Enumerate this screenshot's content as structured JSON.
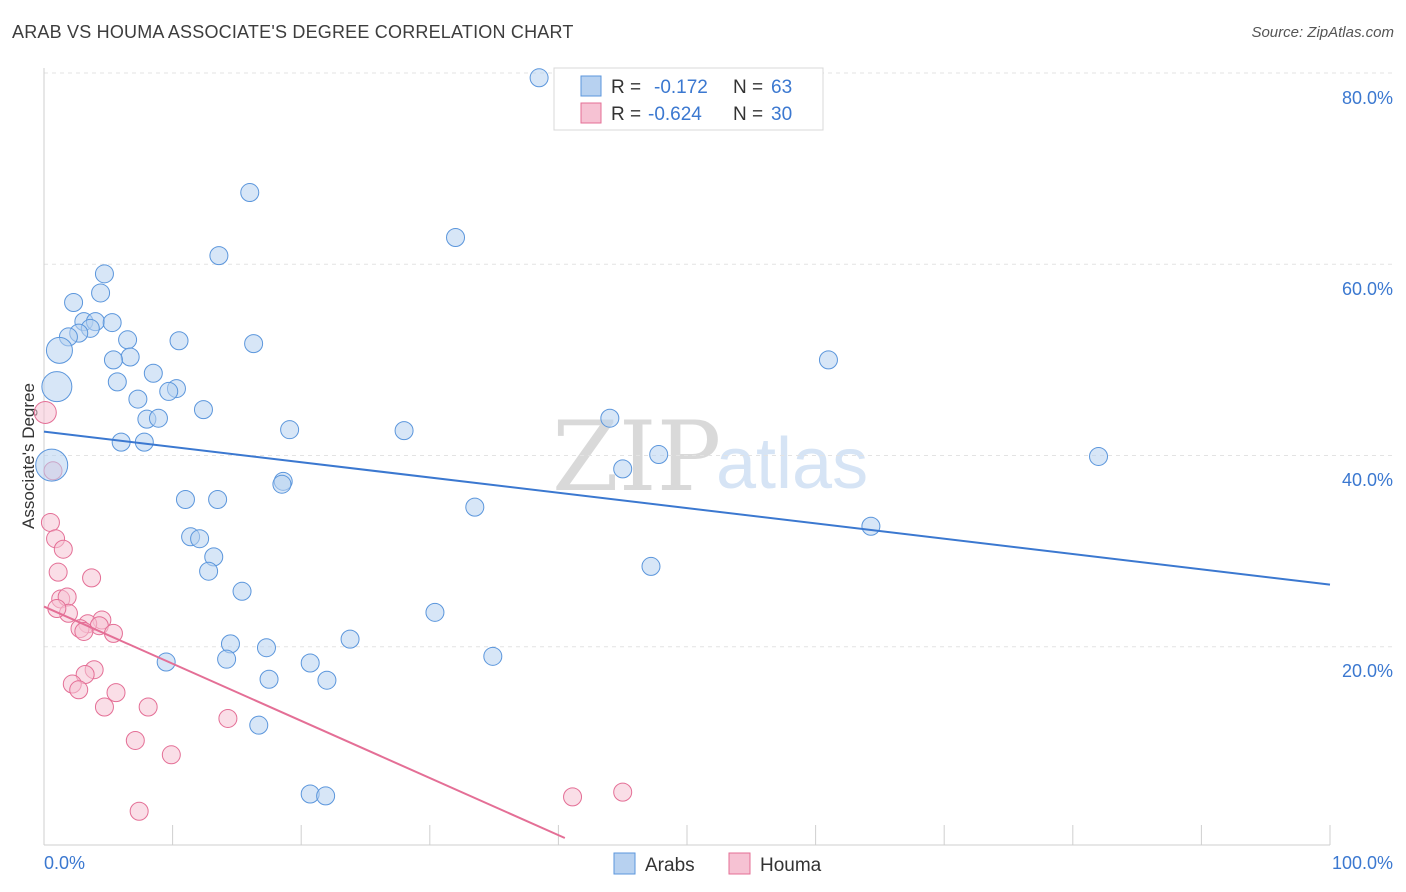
{
  "header": {
    "title": "ARAB VS HOUMA ASSOCIATE'S DEGREE CORRELATION CHART",
    "source": "Source: ZipAtlas.com"
  },
  "colors": {
    "arabs": "#5b96dc",
    "arabs_fill": "#b7d1f0",
    "houma": "#e46f96",
    "houma_fill": "#f6c2d3",
    "tick": "#3b78d0",
    "grid": "#e3e3e3"
  },
  "legend": {
    "arabs": {
      "r_label": "R =",
      "r_value": "-0.172",
      "n_label": "N =",
      "n_value": "63"
    },
    "houma": {
      "r_label": "R =",
      "r_value": "-0.624",
      "n_label": "N =",
      "n_value": "30"
    }
  },
  "watermark": {
    "zip": "ZIP",
    "atlas": "atlas"
  },
  "chart_data": {
    "type": "scatter",
    "title": "ARAB VS HOUMA ASSOCIATE'S DEGREE CORRELATION CHART",
    "xlabel": "",
    "ylabel": "Associate's Degree",
    "xlim": [
      0,
      100
    ],
    "ylim": [
      0,
      80
    ],
    "x_tick_labels": [
      "0.0%",
      "100.0%"
    ],
    "y_ticks": [
      20,
      40,
      60,
      80
    ],
    "y_tick_labels": [
      "20.0%",
      "40.0%",
      "60.0%",
      "80.0%"
    ],
    "legend_position": "bottom",
    "series": [
      {
        "name": "Arabs",
        "trend": {
          "x": [
            0,
            100
          ],
          "y": [
            42.5,
            26.5
          ]
        },
        "points": [
          {
            "x": 38.5,
            "y": 79.5,
            "size": 9
          },
          {
            "x": 16.0,
            "y": 67.5,
            "size": 9
          },
          {
            "x": 32.0,
            "y": 62.8,
            "size": 9
          },
          {
            "x": 13.6,
            "y": 60.9,
            "size": 9
          },
          {
            "x": 4.7,
            "y": 59.0,
            "size": 9
          },
          {
            "x": 4.4,
            "y": 57.0,
            "size": 9
          },
          {
            "x": 2.3,
            "y": 56.0,
            "size": 9
          },
          {
            "x": 3.1,
            "y": 54.0,
            "size": 9
          },
          {
            "x": 4.0,
            "y": 54.0,
            "size": 9
          },
          {
            "x": 3.6,
            "y": 53.3,
            "size": 9
          },
          {
            "x": 2.7,
            "y": 52.8,
            "size": 9
          },
          {
            "x": 1.9,
            "y": 52.4,
            "size": 9
          },
          {
            "x": 6.5,
            "y": 52.1,
            "size": 9
          },
          {
            "x": 10.5,
            "y": 52.0,
            "size": 9
          },
          {
            "x": 16.3,
            "y": 51.7,
            "size": 9
          },
          {
            "x": 1.2,
            "y": 51.0,
            "size": 13
          },
          {
            "x": 6.7,
            "y": 50.3,
            "size": 9
          },
          {
            "x": 5.4,
            "y": 50.0,
            "size": 9
          },
          {
            "x": 61.0,
            "y": 50.0,
            "size": 9
          },
          {
            "x": 8.5,
            "y": 48.6,
            "size": 9
          },
          {
            "x": 5.7,
            "y": 47.7,
            "size": 9
          },
          {
            "x": 1.0,
            "y": 47.2,
            "size": 15
          },
          {
            "x": 10.3,
            "y": 47.0,
            "size": 9
          },
          {
            "x": 9.7,
            "y": 46.7,
            "size": 9
          },
          {
            "x": 7.3,
            "y": 45.9,
            "size": 9
          },
          {
            "x": 12.4,
            "y": 44.8,
            "size": 9
          },
          {
            "x": 8.0,
            "y": 43.8,
            "size": 9
          },
          {
            "x": 8.9,
            "y": 43.9,
            "size": 9
          },
          {
            "x": 44.0,
            "y": 43.9,
            "size": 9
          },
          {
            "x": 19.1,
            "y": 42.7,
            "size": 9
          },
          {
            "x": 28.0,
            "y": 42.6,
            "size": 9
          },
          {
            "x": 6.0,
            "y": 41.4,
            "size": 9
          },
          {
            "x": 7.8,
            "y": 41.4,
            "size": 9
          },
          {
            "x": 47.8,
            "y": 40.1,
            "size": 9
          },
          {
            "x": 82.0,
            "y": 39.9,
            "size": 9
          },
          {
            "x": 0.6,
            "y": 39.0,
            "size": 16
          },
          {
            "x": 45.0,
            "y": 38.6,
            "size": 9
          },
          {
            "x": 18.6,
            "y": 37.3,
            "size": 9
          },
          {
            "x": 18.5,
            "y": 37.0,
            "size": 9
          },
          {
            "x": 11.0,
            "y": 35.4,
            "size": 9
          },
          {
            "x": 13.5,
            "y": 35.4,
            "size": 9
          },
          {
            "x": 33.5,
            "y": 34.6,
            "size": 9
          },
          {
            "x": 64.3,
            "y": 32.6,
            "size": 9
          },
          {
            "x": 11.4,
            "y": 31.5,
            "size": 9
          },
          {
            "x": 12.1,
            "y": 31.3,
            "size": 9
          },
          {
            "x": 13.2,
            "y": 29.4,
            "size": 9
          },
          {
            "x": 12.8,
            "y": 27.9,
            "size": 9
          },
          {
            "x": 47.2,
            "y": 28.4,
            "size": 9
          },
          {
            "x": 15.4,
            "y": 25.8,
            "size": 9
          },
          {
            "x": 30.4,
            "y": 23.6,
            "size": 9
          },
          {
            "x": 14.5,
            "y": 20.3,
            "size": 9
          },
          {
            "x": 23.8,
            "y": 20.8,
            "size": 9
          },
          {
            "x": 17.3,
            "y": 19.9,
            "size": 9
          },
          {
            "x": 34.9,
            "y": 19.0,
            "size": 9
          },
          {
            "x": 14.2,
            "y": 18.7,
            "size": 9
          },
          {
            "x": 9.5,
            "y": 18.4,
            "size": 9
          },
          {
            "x": 20.7,
            "y": 18.3,
            "size": 9
          },
          {
            "x": 17.5,
            "y": 16.6,
            "size": 9
          },
          {
            "x": 22.0,
            "y": 16.5,
            "size": 9
          },
          {
            "x": 16.7,
            "y": 11.8,
            "size": 9
          },
          {
            "x": 20.7,
            "y": 4.6,
            "size": 9
          },
          {
            "x": 21.9,
            "y": 4.4,
            "size": 9
          },
          {
            "x": 5.3,
            "y": 53.9,
            "size": 9
          }
        ]
      },
      {
        "name": "Houma",
        "trend": {
          "x": [
            0,
            40.5
          ],
          "y": [
            24.2,
            0
          ]
        },
        "points": [
          {
            "x": 0.1,
            "y": 44.5,
            "size": 11
          },
          {
            "x": 0.7,
            "y": 38.4,
            "size": 9
          },
          {
            "x": 0.5,
            "y": 33.0,
            "size": 9
          },
          {
            "x": 0.9,
            "y": 31.3,
            "size": 9
          },
          {
            "x": 1.5,
            "y": 30.2,
            "size": 9
          },
          {
            "x": 1.1,
            "y": 27.8,
            "size": 9
          },
          {
            "x": 3.7,
            "y": 27.2,
            "size": 9
          },
          {
            "x": 1.3,
            "y": 25.0,
            "size": 9
          },
          {
            "x": 1.8,
            "y": 25.2,
            "size": 9
          },
          {
            "x": 1.9,
            "y": 23.5,
            "size": 9
          },
          {
            "x": 4.5,
            "y": 22.8,
            "size": 9
          },
          {
            "x": 3.4,
            "y": 22.4,
            "size": 9
          },
          {
            "x": 4.3,
            "y": 22.2,
            "size": 9
          },
          {
            "x": 2.8,
            "y": 21.9,
            "size": 9
          },
          {
            "x": 3.1,
            "y": 21.6,
            "size": 9
          },
          {
            "x": 5.4,
            "y": 21.4,
            "size": 9
          },
          {
            "x": 3.9,
            "y": 17.6,
            "size": 9
          },
          {
            "x": 3.2,
            "y": 17.1,
            "size": 9
          },
          {
            "x": 2.2,
            "y": 16.1,
            "size": 9
          },
          {
            "x": 2.7,
            "y": 15.5,
            "size": 9
          },
          {
            "x": 5.6,
            "y": 15.2,
            "size": 9
          },
          {
            "x": 4.7,
            "y": 13.7,
            "size": 9
          },
          {
            "x": 8.1,
            "y": 13.7,
            "size": 9
          },
          {
            "x": 14.3,
            "y": 12.5,
            "size": 9
          },
          {
            "x": 7.1,
            "y": 10.2,
            "size": 9
          },
          {
            "x": 9.9,
            "y": 8.7,
            "size": 9
          },
          {
            "x": 45.0,
            "y": 4.8,
            "size": 9
          },
          {
            "x": 41.1,
            "y": 4.3,
            "size": 9
          },
          {
            "x": 7.4,
            "y": 2.8,
            "size": 9
          },
          {
            "x": 1.0,
            "y": 24.0,
            "size": 9
          }
        ]
      }
    ]
  }
}
